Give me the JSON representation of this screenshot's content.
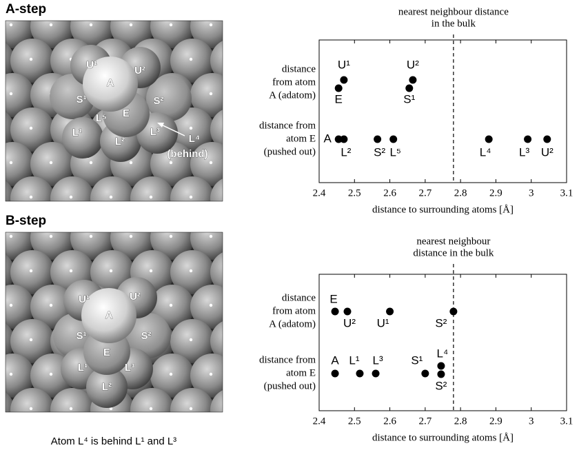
{
  "images": [
    {
      "title": "A-step",
      "labels": [
        "U¹",
        "U²",
        "A",
        "S¹",
        "S²",
        "L⁵",
        "E",
        "L¹",
        "L²",
        "L³",
        "L⁴",
        "(behind)"
      ]
    },
    {
      "title": "B-step",
      "labels": [
        "U¹",
        "U²",
        "A",
        "S¹",
        "S²",
        "E",
        "L¹",
        "L³",
        "L²"
      ],
      "caption": "Atom L⁴ is behind L¹ and L³"
    }
  ],
  "chart_data": [
    {
      "type": "strip",
      "annotation": [
        "nearest neighbour distance",
        "in the bulk"
      ],
      "reference": 2.78,
      "xlabel": "distance to surrounding atoms [Å]",
      "xlim": [
        2.4,
        3.1
      ],
      "xticks": [
        2.4,
        2.5,
        2.6,
        2.7,
        2.8,
        2.9,
        3,
        3.1
      ],
      "rows": [
        {
          "label": [
            "distance",
            "from atom",
            "A (adatom)"
          ],
          "points": [
            {
              "label": "E",
              "value": 2.455
            },
            {
              "label": "U¹",
              "value": 2.47
            },
            {
              "label": "S¹",
              "value": 2.655
            },
            {
              "label": "U²",
              "value": 2.665
            }
          ]
        },
        {
          "label": [
            "distance from",
            "atom E",
            "(pushed out)"
          ],
          "points": [
            {
              "label": "A",
              "value": 2.455
            },
            {
              "label": "L²",
              "value": 2.47
            },
            {
              "label": "S²",
              "value": 2.565
            },
            {
              "label": "L⁵",
              "value": 2.61
            },
            {
              "label": "L⁴",
              "value": 2.88
            },
            {
              "label": "L³",
              "value": 2.99
            },
            {
              "label": "U²",
              "value": 3.045
            }
          ]
        }
      ]
    },
    {
      "type": "strip",
      "annotation": [
        "nearest neighbour",
        "distance in the bulk"
      ],
      "reference": 2.78,
      "xlabel": "distance to surrounding atoms [Å]",
      "xlim": [
        2.4,
        3.1
      ],
      "xticks": [
        2.4,
        2.5,
        2.6,
        2.7,
        2.8,
        2.9,
        3,
        3.1
      ],
      "rows": [
        {
          "label": [
            "distance",
            "from atom",
            "A (adatom)"
          ],
          "points": [
            {
              "label": "E",
              "value": 2.445
            },
            {
              "label": "U²",
              "value": 2.48
            },
            {
              "label": "U¹",
              "value": 2.6
            },
            {
              "label": "S²",
              "value": 2.78
            }
          ]
        },
        {
          "label": [
            "distance from",
            "atom E",
            "(pushed out)"
          ],
          "points": [
            {
              "label": "A",
              "value": 2.445
            },
            {
              "label": "L¹",
              "value": 2.515
            },
            {
              "label": "L³",
              "value": 2.56
            },
            {
              "label": "S¹",
              "value": 2.7
            },
            {
              "label": "L⁴",
              "value": 2.745
            },
            {
              "label": "S²",
              "value": 2.745
            }
          ]
        }
      ]
    }
  ]
}
